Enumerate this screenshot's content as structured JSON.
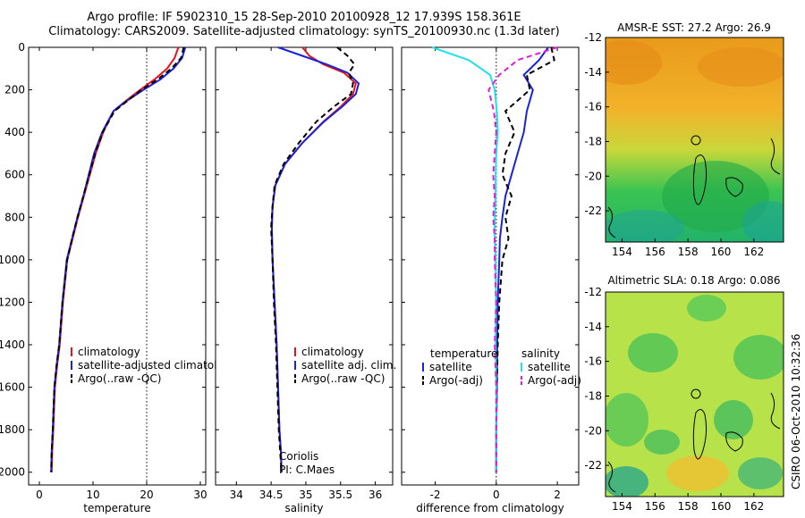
{
  "header": {
    "title_line1": "Argo profile: IF 5902310_15 28-Sep-2010 20100928_12 17.939S 158.361E",
    "title_line2": "Climatology: CARS2009. Satellite-adjusted climatology: synTS_20100930.nc (1.3d later)"
  },
  "footer": {
    "stamp": "CSIRO 06-Oct-2010 10:32:36"
  },
  "colors": {
    "climatology": "#e8131a",
    "satellite": "#1a23d8",
    "argo": "#000000",
    "salinity_sat": "#22e0e8",
    "salinity_argo": "#e01ed8"
  },
  "chart_data": [
    {
      "type": "line",
      "panel": "temperature",
      "xlabel": "temperature",
      "xlim": [
        -2,
        31
      ],
      "ylim": [
        2060,
        0
      ],
      "xticks": [
        0,
        10,
        20,
        30
      ],
      "yticks": [
        0,
        200,
        400,
        600,
        800,
        1000,
        1200,
        1400,
        1600,
        1800,
        2000
      ],
      "vline_dotted": 20,
      "legend": [
        "climatology",
        "satellite-adjusted climatology",
        "Argo(..raw -QC)"
      ],
      "series": [
        {
          "name": "climatology",
          "style": "solid",
          "color": "#e8131a",
          "x": [
            25.9,
            25.2,
            23.8,
            21.5,
            18.8,
            16.2,
            13.8,
            11.9,
            10.5,
            9.4,
            8.3,
            7.2,
            6.2,
            5.2,
            4.4,
            3.8,
            3.3,
            2.9,
            2.6,
            2.4,
            2.3
          ],
          "y": [
            0,
            50,
            100,
            150,
            200,
            250,
            300,
            400,
            500,
            600,
            700,
            800,
            900,
            1000,
            1200,
            1400,
            1500,
            1600,
            1800,
            1900,
            2000
          ]
        },
        {
          "name": "satellite-adjusted climatology",
          "style": "solid",
          "color": "#1a23d8",
          "x": [
            27.2,
            26.6,
            25.0,
            22.6,
            19.4,
            16.4,
            13.8,
            11.7,
            10.2,
            9.2,
            8.2,
            7.1,
            6.1,
            5.1,
            4.3,
            3.7,
            3.2,
            2.8,
            2.5,
            2.3,
            2.2
          ],
          "y": [
            0,
            50,
            100,
            150,
            200,
            250,
            300,
            400,
            500,
            600,
            700,
            800,
            900,
            1000,
            1200,
            1400,
            1500,
            1600,
            1800,
            1900,
            2000
          ]
        },
        {
          "name": "Argo(..raw -QC)",
          "style": "dashed",
          "color": "#000000",
          "x": [
            26.9,
            26.4,
            24.6,
            22.1,
            19.0,
            16.5,
            14.0,
            11.8,
            10.4,
            9.3,
            8.2,
            7.1,
            6.1,
            5.2,
            4.3,
            3.7,
            3.2,
            2.8,
            2.5,
            2.3,
            2.2
          ],
          "y": [
            0,
            50,
            100,
            150,
            200,
            250,
            300,
            400,
            500,
            600,
            700,
            800,
            900,
            1000,
            1200,
            1400,
            1500,
            1600,
            1800,
            1900,
            2000
          ]
        }
      ]
    },
    {
      "type": "line",
      "panel": "salinity",
      "xlabel": "salinity",
      "xlim": [
        33.7,
        36.25
      ],
      "ylim": [
        2060,
        0
      ],
      "xticks": [
        34,
        34.5,
        35,
        35.5,
        36
      ],
      "yticks": [
        0,
        200,
        400,
        600,
        800,
        1000,
        1200,
        1400,
        1600,
        1800,
        2000
      ],
      "legend": [
        "climatology",
        "satellite adj. clim.",
        "Argo(..raw -QC)"
      ],
      "annotation": [
        "Coriolis",
        "PI: C.Maes"
      ],
      "series": [
        {
          "name": "climatology",
          "style": "solid",
          "color": "#e8131a",
          "x": [
            34.95,
            35.05,
            35.25,
            35.55,
            35.72,
            35.68,
            35.5,
            35.25,
            34.95,
            34.7,
            34.56,
            34.52,
            34.51,
            34.52,
            34.55,
            34.58,
            34.6,
            34.62,
            34.64,
            34.65
          ],
          "y": [
            0,
            40,
            80,
            120,
            170,
            220,
            280,
            350,
            450,
            550,
            650,
            750,
            850,
            1000,
            1200,
            1400,
            1600,
            1800,
            1900,
            2000
          ]
        },
        {
          "name": "satellite adj. clim.",
          "style": "solid",
          "color": "#1a23d8",
          "x": [
            34.6,
            34.95,
            35.3,
            35.6,
            35.76,
            35.72,
            35.52,
            35.26,
            34.95,
            34.7,
            34.56,
            34.52,
            34.51,
            34.52,
            34.55,
            34.58,
            34.6,
            34.62,
            34.64,
            34.65
          ],
          "y": [
            0,
            40,
            80,
            120,
            170,
            220,
            280,
            350,
            450,
            550,
            650,
            750,
            850,
            1000,
            1200,
            1400,
            1600,
            1800,
            1900,
            2000
          ]
        },
        {
          "name": "Argo(..raw -QC)",
          "style": "dashed",
          "color": "#000000",
          "x": [
            35.45,
            35.6,
            35.7,
            35.62,
            35.68,
            35.65,
            35.4,
            35.15,
            34.9,
            34.68,
            34.55,
            34.52,
            34.5,
            34.52,
            34.54,
            34.57,
            34.59,
            34.61,
            34.63,
            34.65
          ],
          "y": [
            0,
            40,
            80,
            120,
            170,
            220,
            280,
            350,
            450,
            550,
            650,
            750,
            850,
            1000,
            1200,
            1400,
            1600,
            1800,
            1900,
            2000
          ]
        }
      ]
    },
    {
      "type": "line",
      "panel": "difference",
      "xlabel": "difference from climatology",
      "xlim": [
        -3.1,
        2.7
      ],
      "ylim": [
        2060,
        0
      ],
      "xticks": [
        -2,
        0,
        2
      ],
      "yticks": [
        0,
        200,
        400,
        600,
        800,
        1000,
        1200,
        1400,
        1600,
        1800,
        2000
      ],
      "vline_dotted": 0,
      "legend_left_title": "temperature",
      "legend_right_title": "salinity",
      "legend": [
        "satellite",
        "Argo(-adj)",
        "satellite",
        "Argo(-adj)"
      ],
      "series": [
        {
          "name": "satellite",
          "group": "temperature",
          "style": "solid",
          "color": "#1a23d8",
          "x": [
            1.7,
            1.4,
            0.9,
            1.2,
            1.0,
            0.9,
            0.7,
            0.5,
            0.3,
            0.2,
            0.12,
            0.1,
            0.05,
            0.03,
            0.02,
            0.0,
            0.0
          ],
          "y": [
            0,
            60,
            130,
            200,
            300,
            400,
            500,
            600,
            700,
            800,
            900,
            1000,
            1200,
            1400,
            1600,
            1800,
            2000
          ]
        },
        {
          "name": "Argo(-adj)",
          "group": "temperature",
          "style": "dashed",
          "color": "#000000",
          "x": [
            1.8,
            1.9,
            1.0,
            1.1,
            0.3,
            0.6,
            0.3,
            0.2,
            0.5,
            0.3,
            0.4,
            0.2,
            0.1,
            0.05,
            0.02,
            0.0,
            0.0
          ],
          "y": [
            0,
            60,
            130,
            200,
            300,
            400,
            500,
            600,
            700,
            800,
            900,
            1000,
            1200,
            1400,
            1600,
            1800,
            2000
          ]
        },
        {
          "name": "satellite",
          "group": "salinity",
          "style": "solid",
          "color": "#22e0e8",
          "x": [
            -2.1,
            -0.9,
            -0.2,
            -0.05,
            0.02,
            0.05,
            0.0,
            -0.02,
            -0.02,
            -0.05,
            -0.05,
            -0.02,
            -0.01,
            -0.02,
            0.0,
            0.0,
            0.0
          ],
          "y": [
            0,
            60,
            130,
            200,
            300,
            400,
            500,
            600,
            700,
            800,
            900,
            1000,
            1200,
            1400,
            1600,
            1800,
            2000
          ]
        },
        {
          "name": "Argo(-adj)",
          "group": "salinity",
          "style": "dashed",
          "color": "#e01ed8",
          "x": [
            2.0,
            0.7,
            0.1,
            -0.25,
            -0.08,
            0.0,
            -0.05,
            -0.1,
            -0.05,
            -0.1,
            -0.05,
            -0.05,
            0.0,
            -0.05,
            0.0,
            0.0,
            0.0
          ],
          "y": [
            0,
            60,
            130,
            200,
            300,
            400,
            500,
            600,
            700,
            800,
            900,
            1000,
            1200,
            1400,
            1600,
            1800,
            2000
          ]
        }
      ]
    },
    {
      "type": "heatmap",
      "panel": "sst_map",
      "title": "AMSR-E SST: 27.2 Argo: 26.9",
      "xlim": [
        153,
        163.8
      ],
      "ylim": [
        -23.8,
        -12
      ],
      "xticks": [
        154,
        156,
        158,
        160,
        162
      ],
      "yticks": [
        -12,
        -14,
        -16,
        -18,
        -20,
        -22
      ],
      "marker": {
        "lon": 158.361,
        "lat": -17.939
      }
    },
    {
      "type": "heatmap",
      "panel": "sla_map",
      "title": "Altimetric SLA: 0.18 Argo: 0.086",
      "xlim": [
        153,
        163.8
      ],
      "ylim": [
        -23.8,
        -12
      ],
      "xticks": [
        154,
        156,
        158,
        160,
        162
      ],
      "yticks": [
        -12,
        -14,
        -16,
        -18,
        -20,
        -22
      ],
      "marker": {
        "lon": 158.361,
        "lat": -17.939
      }
    }
  ]
}
